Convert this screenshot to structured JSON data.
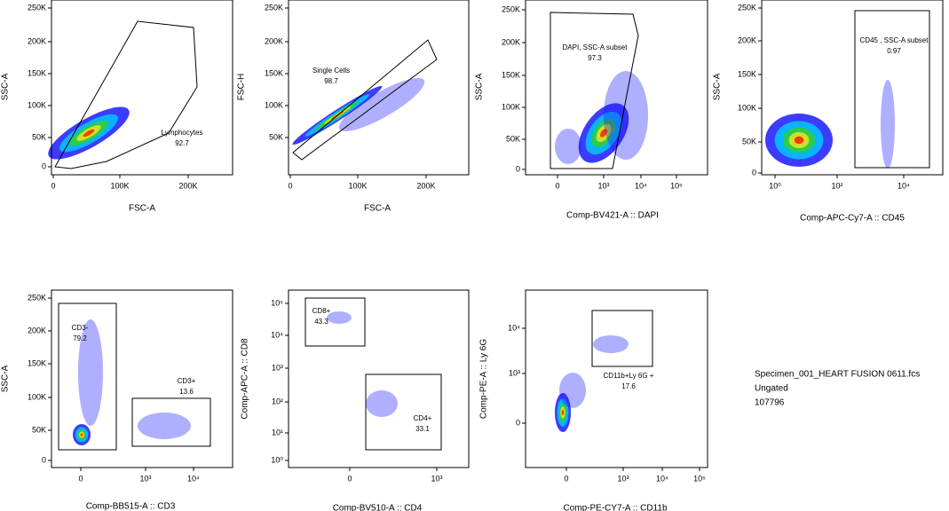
{
  "plots": [
    {
      "x_label": "FSC-A",
      "y_label": "SSC-A",
      "xticks": [
        "0",
        "100K",
        "200K"
      ],
      "yticks": [
        "0",
        "50K",
        "100K",
        "150K",
        "200K",
        "250K"
      ],
      "gates": [
        {
          "name": "Lymphocytes",
          "value": "92.7"
        }
      ]
    },
    {
      "x_label": "FSC-A",
      "y_label": "FSC-H",
      "xticks": [
        "0",
        "100K",
        "200K"
      ],
      "yticks": [
        "50K",
        "100K",
        "150K",
        "200K",
        "250K"
      ],
      "gates": [
        {
          "name": "Single Cells",
          "value": "98.7"
        }
      ]
    },
    {
      "x_label": "Comp-BV421-A :: DAPI",
      "y_label": "SSC-A",
      "xticks": [
        "0",
        "10³",
        "10⁴",
        "10⁵"
      ],
      "yticks": [
        "0",
        "50K",
        "100K",
        "150K",
        "200K",
        "250K"
      ],
      "gates": [
        {
          "name": "DAPI, SSC-A subset",
          "value": "97.3"
        }
      ]
    },
    {
      "x_label": "Comp-APC-Cy7-A :: CD45",
      "y_label": "SSC-A",
      "xticks": [
        "10⁰",
        "10²",
        "10⁴"
      ],
      "yticks": [
        "0",
        "50K",
        "100K",
        "150K",
        "200K",
        "250K"
      ],
      "gates": [
        {
          "name": "CD45 , SSC-A subset",
          "value": "0.97"
        }
      ]
    },
    {
      "x_label": "Comp-BB515-A :: CD3",
      "y_label": "SSC-A",
      "xticks": [
        "0",
        "10³",
        "10⁴"
      ],
      "yticks": [
        "0",
        "50K",
        "100K",
        "150K",
        "200K",
        "250K"
      ],
      "gates": [
        {
          "name": "CD3-",
          "value": "79.2"
        },
        {
          "name": "CD3+",
          "value": "13.6"
        }
      ]
    },
    {
      "x_label": "Comp-BV510-A :: CD4",
      "y_label": "Comp-APC-A :: CD8",
      "xticks": [
        "0",
        "10³"
      ],
      "yticks": [
        "10⁰",
        "10¹",
        "10²",
        "10³",
        "10⁴",
        "10⁵"
      ],
      "gates": [
        {
          "name": "CD8+",
          "value": "43.3"
        },
        {
          "name": "CD4+",
          "value": "33.1"
        }
      ]
    },
    {
      "x_label": "Comp-PE-CY7-A :: CD11b",
      "y_label": "Comp-PE-A :: Ly 6G",
      "xticks": [
        "0",
        "10³",
        "10⁴",
        "10⁵"
      ],
      "yticks": [
        "0",
        "10³",
        "10⁴"
      ],
      "gates": [
        {
          "name": "CD11b+Ly 6G +",
          "value": "17.6"
        }
      ]
    }
  ],
  "info": {
    "file": "Specimen_001_HEART FUSION 0611.fcs",
    "status": "Ungated",
    "count": "107796"
  }
}
